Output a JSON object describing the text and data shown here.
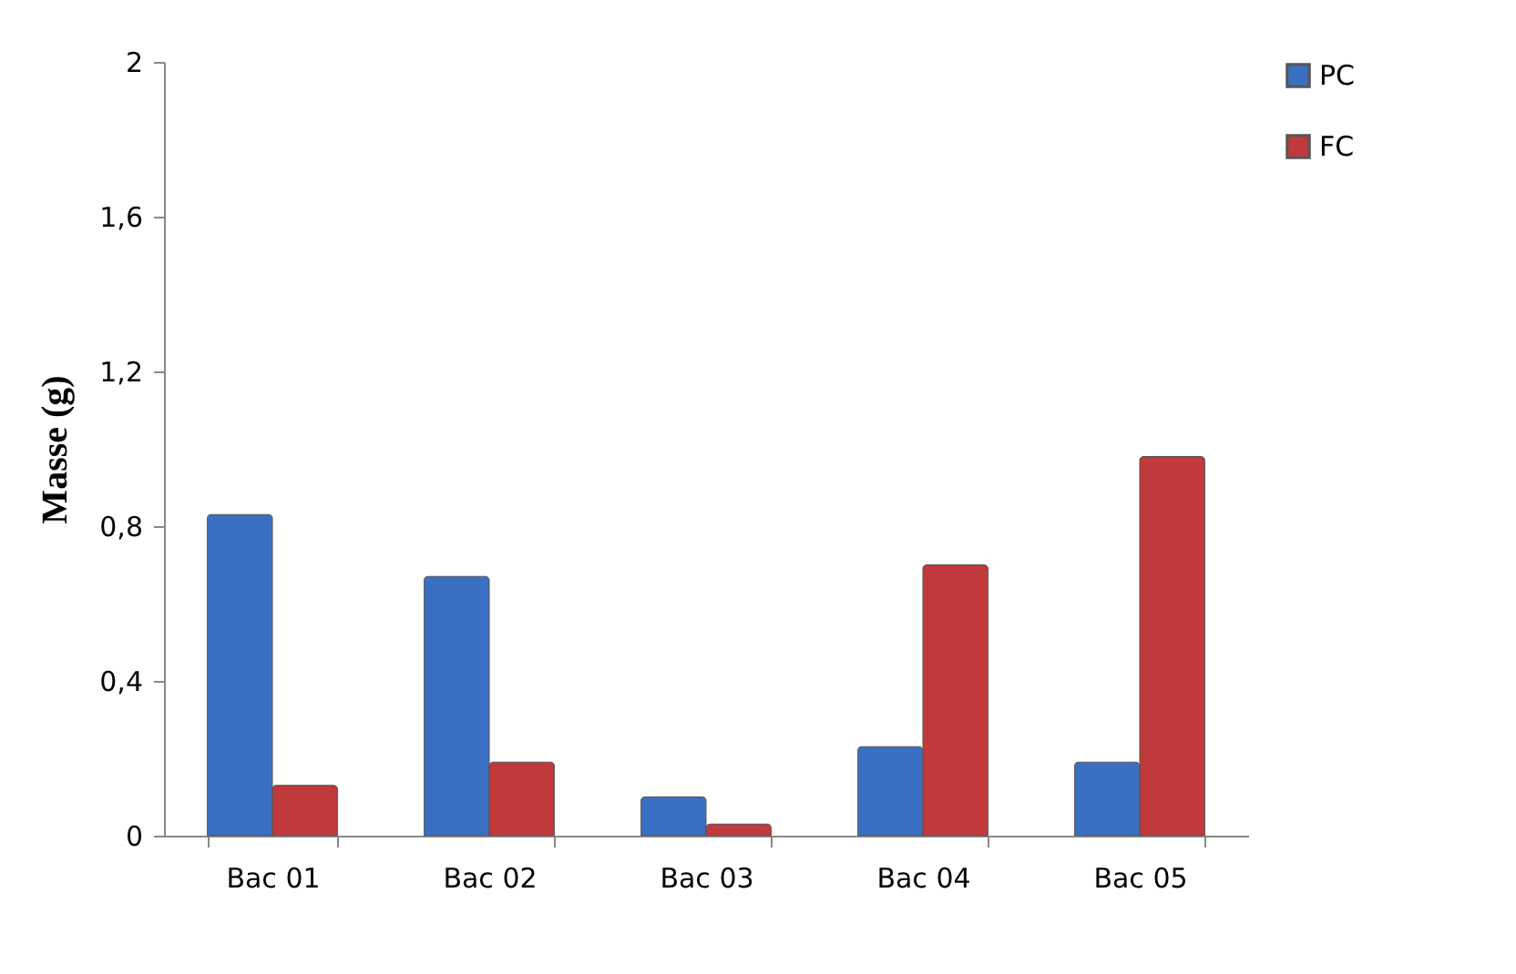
{
  "chart_data": {
    "type": "bar",
    "ylabel": "Masse (g)",
    "categories": [
      "Bac 01",
      "Bac 02",
      "Bac 03",
      "Bac 04",
      "Bac 05"
    ],
    "series": [
      {
        "name": "PC",
        "color": "#3b6fc2",
        "values": [
          0.83,
          0.67,
          0.1,
          0.23,
          0.19
        ]
      },
      {
        "name": "FC",
        "color": "#c0393b",
        "values": [
          0.13,
          0.19,
          0.03,
          0.7,
          0.98
        ]
      }
    ],
    "ylim": [
      0,
      2
    ],
    "yticks": [
      0,
      {
        "value": 0.4,
        "label": "0,4"
      },
      {
        "value": 0.8,
        "label": "0,8"
      },
      {
        "value": 1.2,
        "label": "1,2"
      },
      {
        "value": 1.6,
        "label": "1,6"
      },
      2
    ],
    "grid": false,
    "legend": "right"
  }
}
